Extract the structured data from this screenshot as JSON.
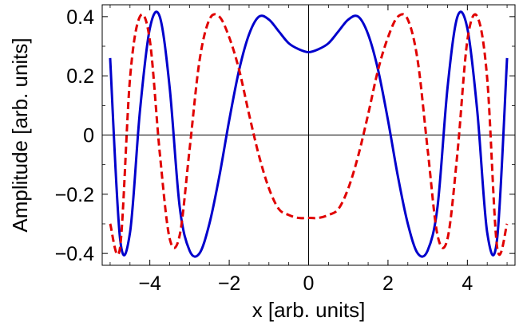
{
  "chart_data": {
    "type": "line",
    "xlabel": "x [arb. units]",
    "ylabel": "Amplitude [arb. units]",
    "xlim": [
      -5.2,
      5.2
    ],
    "ylim": [
      -0.44,
      0.44
    ],
    "x_ticks": [
      -4,
      -2,
      0,
      2,
      4
    ],
    "y_ticks": [
      -0.4,
      -0.2,
      0,
      0.2,
      0.4
    ],
    "x_tick_labels": [
      "−4",
      "−2",
      "0",
      "2",
      "4"
    ],
    "y_tick_labels": [
      "−0.4",
      "−0.2",
      "0",
      "0.2",
      "0.4"
    ],
    "grid": false,
    "legend": "none",
    "series": [
      {
        "style": "solid",
        "color": "#0000cc",
        "x": [
          -5.0,
          -4.75,
          -4.5,
          -4.25,
          -4.0,
          -3.75,
          -3.5,
          -3.25,
          -3.0,
          -2.75,
          -2.5,
          -2.25,
          -2.0,
          -1.75,
          -1.5,
          -1.25,
          -1.0,
          -0.75,
          -0.5,
          -0.25,
          0.0,
          0.25,
          0.5,
          0.75,
          1.0,
          1.25,
          1.5,
          1.75,
          2.0,
          2.25,
          2.5,
          2.75,
          3.0,
          3.25,
          3.5,
          3.75,
          4.0,
          4.25,
          4.5,
          4.75,
          5.0
        ],
        "y": [
          0.26,
          -0.35,
          -0.33,
          0.08,
          0.36,
          0.4,
          0.16,
          -0.24,
          -0.39,
          -0.4,
          -0.3,
          -0.14,
          0.05,
          0.22,
          0.34,
          0.4,
          0.39,
          0.35,
          0.31,
          0.29,
          0.28,
          0.29,
          0.31,
          0.35,
          0.39,
          0.4,
          0.34,
          0.22,
          0.05,
          -0.14,
          -0.3,
          -0.4,
          -0.39,
          -0.24,
          0.16,
          0.4,
          0.36,
          0.08,
          -0.33,
          -0.35,
          0.26
        ]
      },
      {
        "style": "dashed",
        "color": "#e00000",
        "x": [
          -5.0,
          -4.75,
          -4.5,
          -4.25,
          -4.0,
          -3.75,
          -3.5,
          -3.25,
          -3.0,
          -2.75,
          -2.5,
          -2.25,
          -2.0,
          -1.75,
          -1.5,
          -1.25,
          -1.0,
          -0.75,
          -0.5,
          -0.25,
          0.0,
          0.25,
          0.5,
          0.75,
          1.0,
          1.25,
          1.5,
          1.75,
          2.0,
          2.25,
          2.5,
          2.75,
          3.0,
          3.25,
          3.5,
          3.75,
          4.0,
          4.25,
          4.5,
          4.75,
          5.0
        ],
        "y": [
          -0.3,
          -0.38,
          0.19,
          0.4,
          0.32,
          -0.06,
          -0.35,
          -0.34,
          -0.05,
          0.25,
          0.39,
          0.4,
          0.33,
          0.22,
          0.07,
          -0.07,
          -0.18,
          -0.25,
          -0.27,
          -0.28,
          -0.28,
          -0.28,
          -0.27,
          -0.25,
          -0.18,
          -0.07,
          0.07,
          0.22,
          0.33,
          0.4,
          0.39,
          0.25,
          -0.05,
          -0.34,
          -0.35,
          -0.06,
          0.32,
          0.4,
          0.19,
          -0.38,
          -0.3
        ]
      }
    ]
  }
}
